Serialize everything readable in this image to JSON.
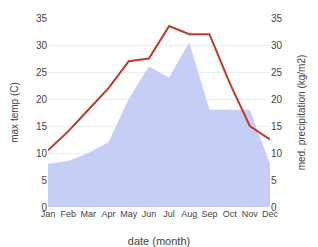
{
  "chart_data": {
    "type": "line",
    "xlabel": "date (month)",
    "ylabel": "max temp (C)",
    "y2label": "med. precipitation (kg/m2)",
    "categories": [
      "Jan",
      "Feb",
      "Mar",
      "Apr",
      "May",
      "Jun",
      "Jul",
      "Aug",
      "Sep",
      "Oct",
      "Nov",
      "Dec"
    ],
    "series": [
      {
        "type": "area",
        "axis": "y2",
        "color": "#c5cef5",
        "values": [
          8.0,
          8.5,
          10.0,
          12.0,
          20.0,
          26.0,
          24.0,
          30.5,
          18.0,
          18.0,
          18.0,
          8.0
        ]
      },
      {
        "type": "line",
        "axis": "y",
        "color": "#c0392b",
        "values": [
          10.5,
          14.0,
          18.0,
          22.0,
          27.0,
          27.5,
          33.5,
          32.0,
          32.0,
          23.0,
          15.0,
          12.5
        ]
      }
    ],
    "ylim": [
      0,
      35
    ],
    "yticks": [
      0,
      5,
      10,
      15,
      20,
      25,
      30,
      35
    ],
    "y2lim": [
      0,
      35
    ],
    "y2ticks": [
      0,
      5,
      10,
      15,
      20,
      25,
      30,
      35
    ],
    "grid": true
  }
}
